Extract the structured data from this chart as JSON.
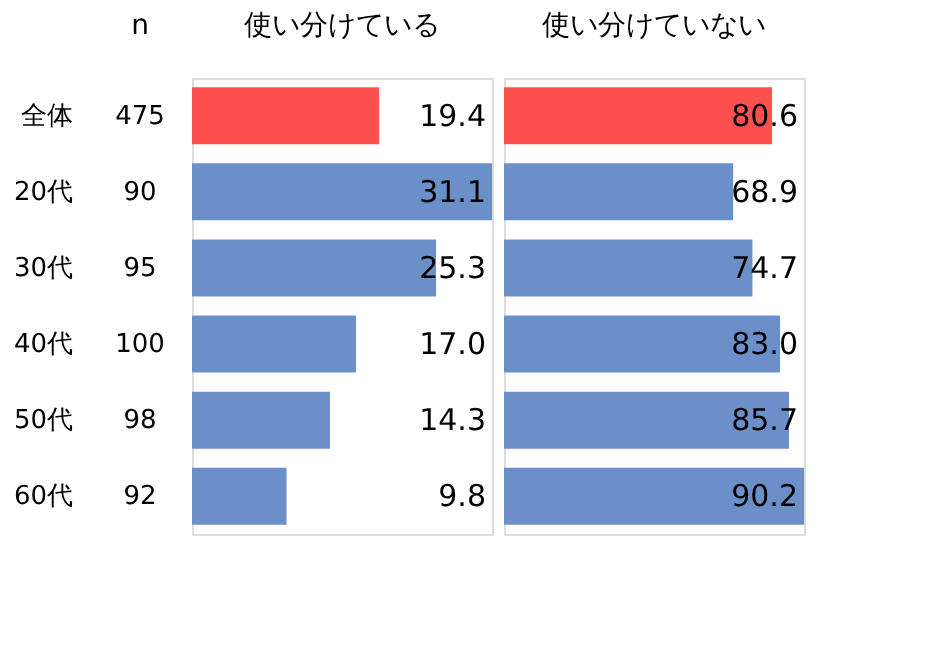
{
  "chart_data": [
    {
      "type": "bar",
      "orientation": "horizontal",
      "title": "使い分けている",
      "categories": [
        "全体",
        "20代",
        "30代",
        "40代",
        "50代",
        "60代"
      ],
      "values": [
        19.4,
        31.1,
        25.3,
        17.0,
        14.3,
        9.8
      ],
      "colors": [
        "#ff5050",
        "#6a8fc9",
        "#6a8fc9",
        "#6a8fc9",
        "#6a8fc9",
        "#6a8fc9"
      ],
      "value_labels": [
        "19.4",
        "31.1",
        "25.3",
        "17.0",
        "14.3",
        "9.8"
      ],
      "tick_labels": "y",
      "annotations": [
        "n",
        "475",
        "90",
        "95",
        "100",
        "98",
        "92"
      ]
    },
    {
      "type": "bar",
      "orientation": "horizontal",
      "title": "使い分けていない",
      "categories": [
        null,
        null,
        null,
        null,
        null,
        null
      ],
      "values": [
        80.6,
        68.9,
        74.7,
        83.0,
        85.7,
        90.2
      ],
      "colors": [
        "#ff5050",
        "#6a8fc9",
        "#6a8fc9",
        "#6a8fc9",
        "#6a8fc9",
        "#6a8fc9"
      ],
      "value_labels": [
        "80.6",
        "68.9",
        "74.7",
        "83.0",
        "85.7",
        "90.2"
      ],
      "tick_labels": false
    }
  ]
}
